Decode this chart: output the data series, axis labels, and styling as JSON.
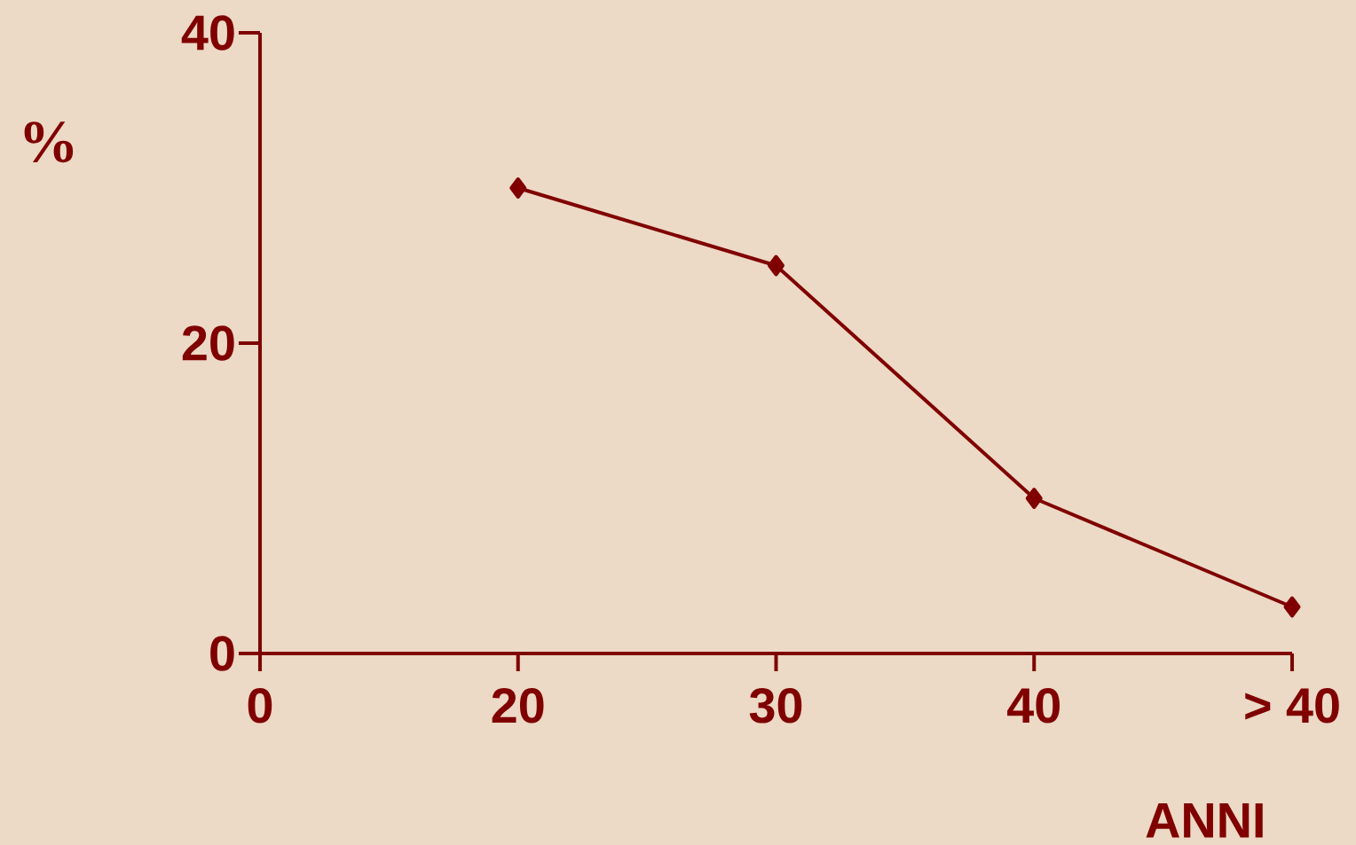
{
  "chart_data": {
    "type": "line",
    "xlabel": "ANNI",
    "ylabel": "%",
    "categories": [
      "0",
      "20",
      "30",
      "40",
      "> 40"
    ],
    "values": [
      null,
      30,
      25,
      10,
      3
    ],
    "color": "#800000",
    "ylim": [
      0,
      40
    ],
    "yticks": [
      0,
      20,
      40
    ],
    "marker": "diamond",
    "line_style": "solid",
    "grid": false
  }
}
